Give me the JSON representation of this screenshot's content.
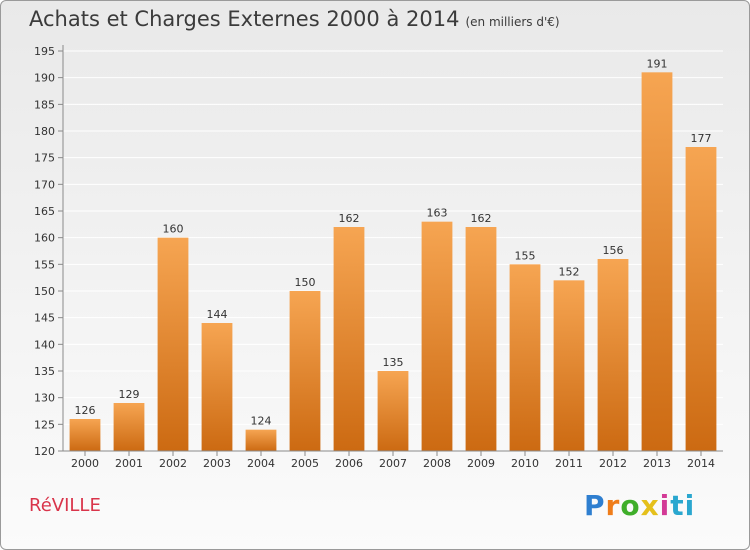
{
  "title": "Achats et Charges Externes 2000 à 2014",
  "subtitle": "(en milliers d'€)",
  "commune": "RéVILLE",
  "logo": {
    "l1": "P",
    "l2": "r",
    "l3": "o",
    "l4": "x",
    "l5": "i",
    "l6": "ti"
  },
  "colors": {
    "bar_top": "#f6a552",
    "bar_bottom": "#cc6a12",
    "grid": "#ffffff",
    "axis": "#8a8a8a",
    "title_text": "#3b3b3b",
    "commune_text": "#d9344a"
  },
  "chart_data": {
    "type": "bar",
    "categories": [
      "2000",
      "2001",
      "2002",
      "2003",
      "2004",
      "2005",
      "2006",
      "2007",
      "2008",
      "2009",
      "2010",
      "2011",
      "2012",
      "2013",
      "2014"
    ],
    "values": [
      126,
      129,
      160,
      144,
      124,
      150,
      162,
      135,
      163,
      162,
      155,
      152,
      156,
      191,
      177
    ],
    "title": "Achats et Charges Externes 2000 à 2014",
    "subtitle": "(en milliers d'€)",
    "xlabel": "",
    "ylabel": "",
    "ylim": [
      120,
      195
    ],
    "yticks": [
      120,
      125,
      130,
      135,
      140,
      145,
      150,
      155,
      160,
      165,
      170,
      175,
      180,
      185,
      190,
      195
    ],
    "grid": true,
    "legend": "none",
    "data_labels": true
  }
}
